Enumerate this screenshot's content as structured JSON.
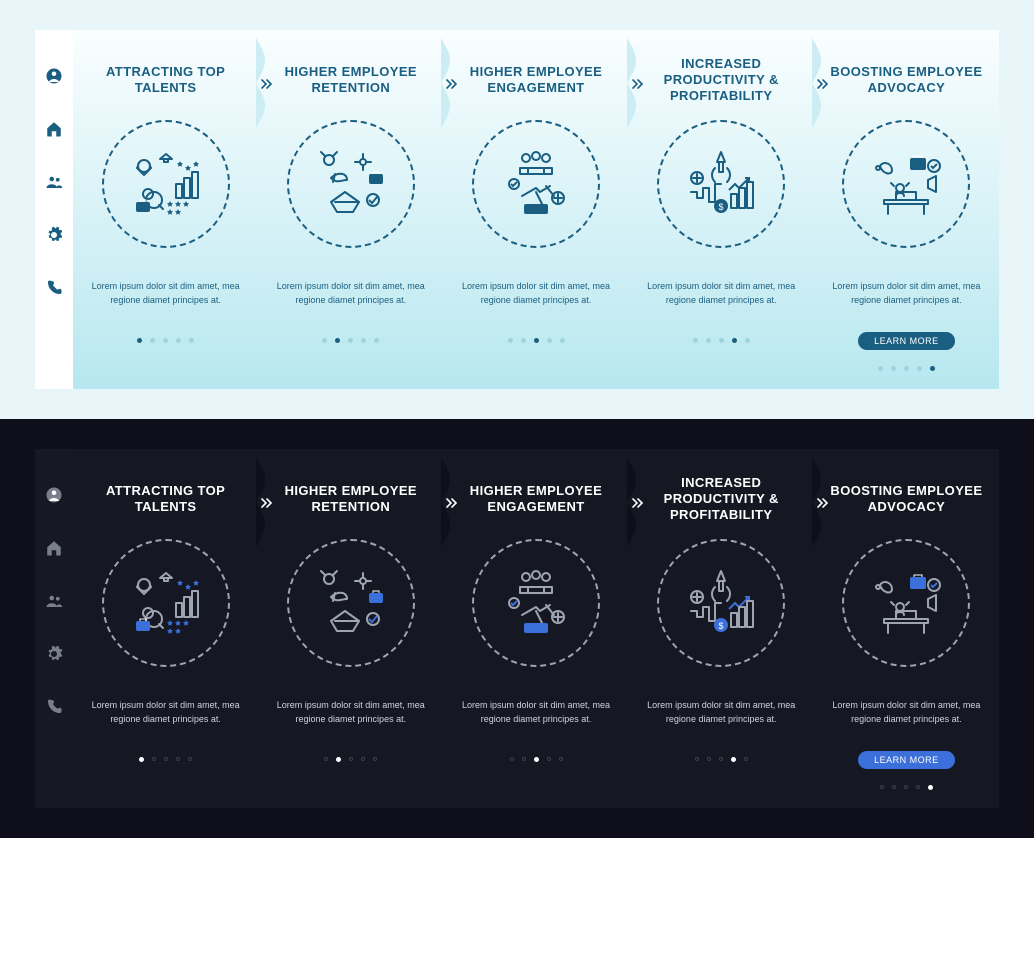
{
  "body_text": "Lorem ipsum dolor sit dim amet, mea regione diamet principes at.",
  "learn_more": "LEARN MORE",
  "sidebar_icons": [
    "user-circle-icon",
    "home-icon",
    "people-icon",
    "gear-icon",
    "phone-icon"
  ],
  "cards": [
    {
      "title": "ATTRACTING TOP TALENTS",
      "icon": "talent-icon",
      "dot_index": 0
    },
    {
      "title": "HIGHER EMPLOYEE RETENTION",
      "icon": "retention-icon",
      "dot_index": 1
    },
    {
      "title": "HIGHER EMPLOYEE ENGAGEMENT",
      "icon": "engagement-icon",
      "dot_index": 2
    },
    {
      "title": "INCREASED PRODUCTIVITY & PROFITABILITY",
      "icon": "productivity-icon",
      "dot_index": 3
    },
    {
      "title": "BOOSTING EMPLOYEE ADVOCACY",
      "icon": "advocacy-icon",
      "dot_index": 4,
      "cta": true
    }
  ],
  "variants": [
    {
      "key": "light",
      "outer_bg": "#e8f6f9",
      "card_bg_top": "#fafeff",
      "card_bg_bottom": "#b7e7ef",
      "sidebar_bg": "#ffffff",
      "primary": "#1a5e82",
      "title_color": "#1a5e82",
      "body_color": "#1a5e82",
      "illustration_stroke": "#1a5e82",
      "illustration_accent": "#1a5e82",
      "dot_inactive": "#9ed3dd",
      "dot_active": "#1a5e82",
      "cta_bg": "#1a5e82",
      "connector_fill": "#cbedf3",
      "connector_chevron": "#1a5e82"
    },
    {
      "key": "dark",
      "outer_bg": "#0e0f1a",
      "card_bg_top": "#151722",
      "card_bg_bottom": "#151722",
      "sidebar_bg": "#161823",
      "primary": "#7a7e8a",
      "title_color": "#ffffff",
      "body_color": "#cfd3de",
      "illustration_stroke": "#9fa4b3",
      "illustration_accent": "#3b6fd9",
      "dot_inactive": "#3a3e4d",
      "dot_active": "#ffffff",
      "cta_bg": "#3b6fd9",
      "connector_fill": "#0e0f1a",
      "connector_chevron": "#ffffff"
    }
  ]
}
